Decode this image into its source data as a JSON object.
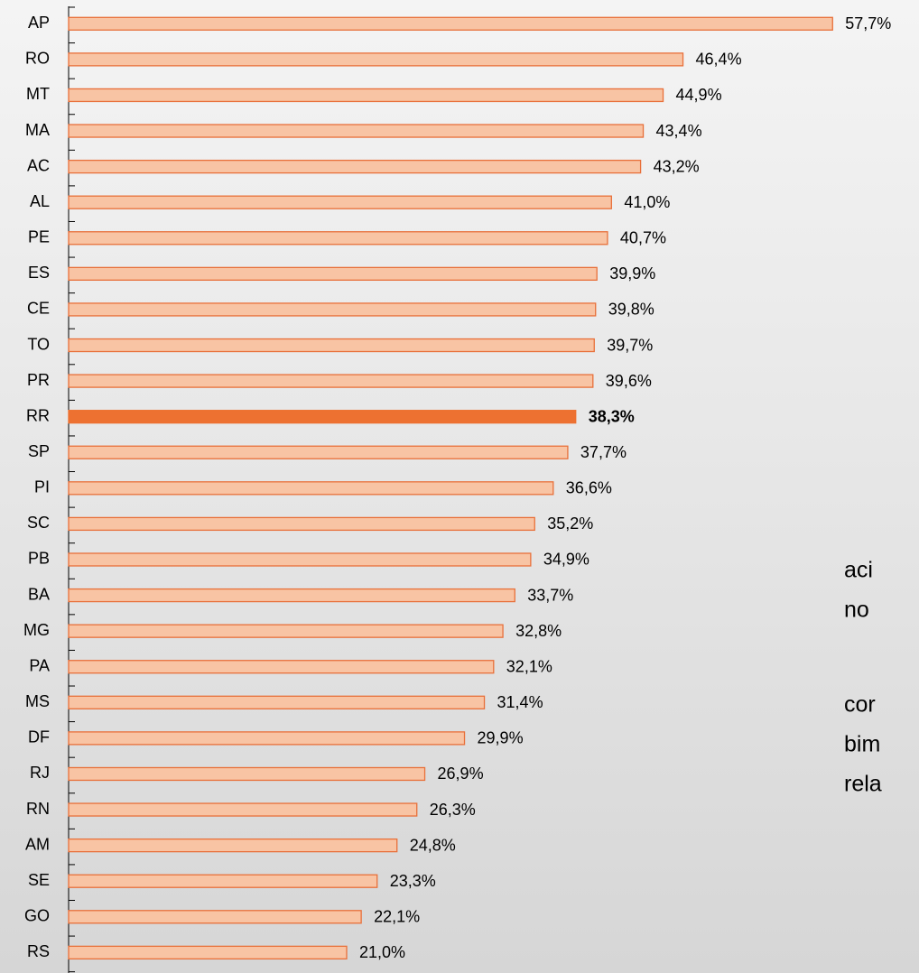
{
  "chart_data": {
    "type": "bar",
    "orientation": "horizontal",
    "categories": [
      "AP",
      "RO",
      "MT",
      "MA",
      "AC",
      "AL",
      "PE",
      "ES",
      "CE",
      "TO",
      "PR",
      "RR",
      "SP",
      "PI",
      "SC",
      "PB",
      "BA",
      "MG",
      "PA",
      "MS",
      "DF",
      "RJ",
      "RN",
      "AM",
      "SE",
      "GO",
      "RS"
    ],
    "values": [
      57.7,
      46.4,
      44.9,
      43.4,
      43.2,
      41.0,
      40.7,
      39.9,
      39.8,
      39.7,
      39.6,
      38.3,
      37.7,
      36.6,
      35.2,
      34.9,
      33.7,
      32.8,
      32.1,
      31.4,
      29.9,
      26.9,
      26.3,
      24.8,
      23.3,
      22.1,
      21.0
    ],
    "value_labels": [
      "57,7%",
      "46,4%",
      "44,9%",
      "43,4%",
      "43,2%",
      "41,0%",
      "40,7%",
      "39,9%",
      "39,8%",
      "39,7%",
      "39,6%",
      "38,3%",
      "37,7%",
      "36,6%",
      "35,2%",
      "34,9%",
      "33,7%",
      "32,8%",
      "32,1%",
      "31,4%",
      "29,9%",
      "26,9%",
      "26,3%",
      "24,8%",
      "23,3%",
      "22,1%",
      "21,0%"
    ],
    "colors": [
      "#f8c4a4",
      "#f8c4a4",
      "#f8c4a4",
      "#f8c4a4",
      "#f8c4a4",
      "#f8c4a4",
      "#f8c4a4",
      "#f8c4a4",
      "#f8c4a4",
      "#f8c4a4",
      "#f8c4a4",
      "#ed7131",
      "#f8c4a4",
      "#f8c4a4",
      "#f8c4a4",
      "#f8c4a4",
      "#f8c4a4",
      "#f8c4a4",
      "#f8c4a4",
      "#f8c4a4",
      "#f8c4a4",
      "#f8c4a4",
      "#f8c4a4",
      "#f8c4a4",
      "#f8c4a4",
      "#f8c4a4",
      "#f8c4a4"
    ],
    "edge_color": "#e8703a",
    "highlight_color": "#ed7131",
    "xlim": [
      0,
      60
    ],
    "annotations": [
      "aci",
      "no",
      "cor",
      "bim",
      "rela"
    ]
  }
}
